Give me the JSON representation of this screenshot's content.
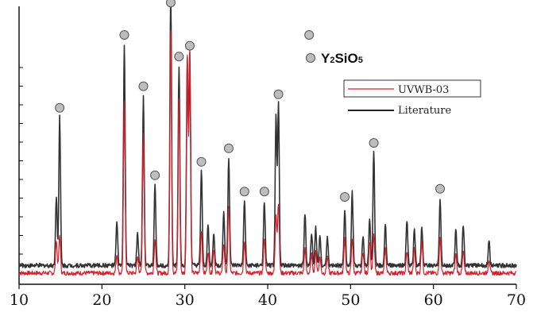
{
  "chart_data": {
    "type": "line",
    "annotation": {
      "label_main": "Y",
      "sub1": "2",
      "mid": "SiO",
      "sub2": "5"
    },
    "x": {
      "ticks": [
        10,
        20,
        30,
        40,
        50,
        60,
        70
      ],
      "range": [
        10,
        70
      ]
    },
    "y": {
      "range": [
        0,
        100
      ]
    },
    "legend": {
      "position": "top-right",
      "items": [
        "UVWB-03",
        "Literature"
      ]
    },
    "grid": false,
    "series": [
      {
        "name": "Literature",
        "color": "#333333",
        "baseline": 4.6,
        "peaks": [
          [
            14.5,
            26.0
          ],
          [
            14.9,
            55.0
          ],
          [
            21.8,
            16.0
          ],
          [
            22.7,
            82.0
          ],
          [
            24.3,
            12.0
          ],
          [
            25.0,
            63.0
          ],
          [
            26.4,
            30.0
          ],
          [
            28.3,
            100.0
          ],
          [
            29.3,
            74.0
          ],
          [
            30.3,
            77.0
          ],
          [
            30.6,
            78.0
          ],
          [
            32.0,
            35.0
          ],
          [
            32.8,
            15.0
          ],
          [
            33.5,
            12.0
          ],
          [
            34.7,
            20.0
          ],
          [
            35.3,
            40.0
          ],
          [
            37.2,
            24.0
          ],
          [
            39.6,
            24.0
          ],
          [
            41.0,
            55.0
          ],
          [
            41.3,
            60.0
          ],
          [
            44.5,
            19.0
          ],
          [
            45.3,
            12.0
          ],
          [
            45.8,
            14.0
          ],
          [
            46.3,
            11.0
          ],
          [
            47.2,
            10.0
          ],
          [
            49.3,
            21.0
          ],
          [
            50.2,
            27.0
          ],
          [
            51.5,
            11.0
          ],
          [
            52.3,
            17.0
          ],
          [
            52.8,
            42.0
          ],
          [
            54.2,
            15.0
          ],
          [
            56.8,
            17.0
          ],
          [
            57.7,
            13.0
          ],
          [
            58.6,
            14.0
          ],
          [
            60.8,
            25.0
          ],
          [
            62.7,
            13.0
          ],
          [
            63.6,
            15.0
          ],
          [
            66.7,
            9.0
          ]
        ]
      },
      {
        "name": "UVWB-03",
        "color": "#d81e2a",
        "baseline": 1.8,
        "peaks": [
          [
            14.5,
            12.0
          ],
          [
            14.9,
            14.0
          ],
          [
            21.8,
            7.0
          ],
          [
            22.7,
            63.0
          ],
          [
            24.3,
            6.0
          ],
          [
            25.0,
            52.0
          ],
          [
            26.4,
            13.0
          ],
          [
            28.3,
            90.0
          ],
          [
            29.3,
            65.0
          ],
          [
            30.3,
            80.0
          ],
          [
            30.6,
            82.0
          ],
          [
            32.0,
            16.0
          ],
          [
            32.8,
            8.0
          ],
          [
            33.5,
            9.0
          ],
          [
            34.7,
            11.0
          ],
          [
            35.3,
            25.0
          ],
          [
            37.2,
            12.0
          ],
          [
            39.6,
            13.0
          ],
          [
            41.0,
            22.0
          ],
          [
            41.3,
            26.0
          ],
          [
            44.5,
            9.0
          ],
          [
            45.3,
            7.0
          ],
          [
            45.8,
            8.0
          ],
          [
            46.3,
            6.0
          ],
          [
            47.2,
            6.0
          ],
          [
            49.3,
            13.0
          ],
          [
            50.2,
            13.0
          ],
          [
            51.5,
            8.0
          ],
          [
            52.3,
            12.0
          ],
          [
            52.8,
            14.0
          ],
          [
            54.2,
            9.0
          ],
          [
            56.8,
            8.0
          ],
          [
            57.7,
            9.0
          ],
          [
            58.6,
            12.0
          ],
          [
            60.8,
            13.0
          ],
          [
            62.7,
            7.0
          ],
          [
            63.6,
            8.0
          ],
          [
            66.7,
            5.0
          ]
        ]
      }
    ],
    "markers": [
      {
        "x": 14.9,
        "y": 63.0
      },
      {
        "x": 22.7,
        "y": 90.0
      },
      {
        "x": 25.0,
        "y": 71.0
      },
      {
        "x": 26.4,
        "y": 38.0
      },
      {
        "x": 28.3,
        "y": 102.0
      },
      {
        "x": 29.3,
        "y": 82.0
      },
      {
        "x": 30.6,
        "y": 86.0
      },
      {
        "x": 32.0,
        "y": 43.0
      },
      {
        "x": 35.3,
        "y": 48.0
      },
      {
        "x": 37.2,
        "y": 32.0
      },
      {
        "x": 39.6,
        "y": 32.0
      },
      {
        "x": 41.3,
        "y": 68.0
      },
      {
        "x": 45.0,
        "y": 90.0
      },
      {
        "x": 49.3,
        "y": 30.0
      },
      {
        "x": 52.8,
        "y": 50.0
      },
      {
        "x": 60.8,
        "y": 33.0
      }
    ]
  }
}
